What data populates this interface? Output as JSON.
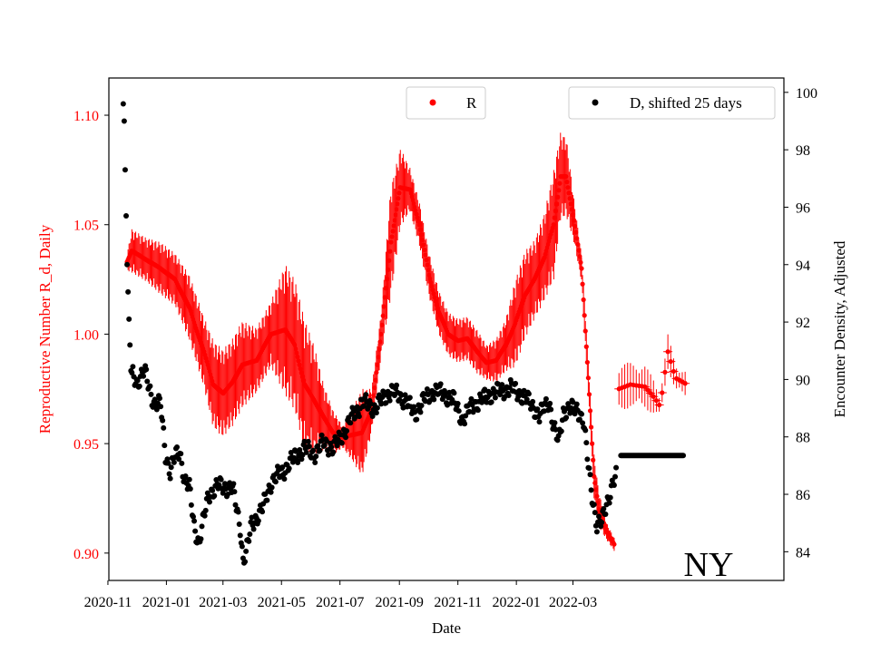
{
  "chart_data": {
    "type": "scatter",
    "xlabel": "Date",
    "ylabel_left": "Reproductive Number R_d, Daily",
    "ylabel_right": "Encounter Density, Adjusted",
    "annotation": "NY",
    "x_ticks": [
      "2020-11",
      "2021-01",
      "2021-03",
      "2021-05",
      "2021-07",
      "2021-09",
      "2021-11",
      "2022-01",
      "2022-03"
    ],
    "x_range_days": [
      -19,
      685
    ],
    "y_left": {
      "ticks": [
        "0.90",
        "0.95",
        "1.00",
        "1.05",
        "1.10"
      ],
      "range": [
        0.8875,
        1.117
      ],
      "color": "#ff0000"
    },
    "y_right": {
      "ticks": [
        "84",
        "86",
        "88",
        "90",
        "92",
        "94",
        "96",
        "98",
        "100"
      ],
      "range": [
        83.0,
        100.5
      ],
      "color": "#000000"
    },
    "legend": [
      {
        "label": "R",
        "color": "#ff0000",
        "position": "upper-center"
      },
      {
        "label": "D, shifted 25 days",
        "color": "#000000",
        "position": "upper-right"
      }
    ],
    "series": [
      {
        "name": "R",
        "axis": "left",
        "color": "#ff0000",
        "error_bars": true,
        "knots": [
          [
            0,
            1.033,
            0.004
          ],
          [
            5,
            1.038,
            0.01
          ],
          [
            20,
            1.034,
            0.01
          ],
          [
            35,
            1.03,
            0.012
          ],
          [
            50,
            1.025,
            0.012
          ],
          [
            65,
            1.012,
            0.015
          ],
          [
            80,
            0.992,
            0.016
          ],
          [
            90,
            0.977,
            0.02
          ],
          [
            100,
            0.973,
            0.02
          ],
          [
            110,
            0.978,
            0.02
          ],
          [
            120,
            0.986,
            0.02
          ],
          [
            135,
            0.988,
            0.015
          ],
          [
            150,
            1.0,
            0.015
          ],
          [
            165,
            1.002,
            0.03
          ],
          [
            175,
            0.995,
            0.03
          ],
          [
            185,
            0.977,
            0.03
          ],
          [
            195,
            0.97,
            0.025
          ],
          [
            205,
            0.962,
            0.015
          ],
          [
            215,
            0.955,
            0.01
          ],
          [
            225,
            0.953,
            0.005
          ],
          [
            235,
            0.954,
            0.012
          ],
          [
            245,
            0.955,
            0.02
          ],
          [
            255,
            0.965,
            0.01
          ],
          [
            265,
            1.0,
            0.01
          ],
          [
            275,
            1.042,
            0.025
          ],
          [
            285,
            1.067,
            0.018
          ],
          [
            295,
            1.066,
            0.01
          ],
          [
            305,
            1.05,
            0.01
          ],
          [
            315,
            1.027,
            0.01
          ],
          [
            325,
            1.01,
            0.01
          ],
          [
            335,
            1.0,
            0.01
          ],
          [
            345,
            0.997,
            0.01
          ],
          [
            355,
            0.998,
            0.01
          ],
          [
            365,
            0.992,
            0.01
          ],
          [
            375,
            0.987,
            0.008
          ],
          [
            385,
            0.988,
            0.01
          ],
          [
            395,
            0.995,
            0.012
          ],
          [
            405,
            1.005,
            0.02
          ],
          [
            415,
            1.018,
            0.02
          ],
          [
            425,
            1.025,
            0.018
          ],
          [
            435,
            1.035,
            0.02
          ],
          [
            445,
            1.05,
            0.025
          ],
          [
            452,
            1.072,
            0.02
          ],
          [
            458,
            1.072,
            0.018
          ],
          [
            466,
            1.052,
            0.01
          ],
          [
            474,
            1.03,
            0.006
          ],
          [
            481,
            0.98,
            0.008
          ],
          [
            487,
            0.935,
            0.01
          ],
          [
            492,
            0.92,
            0.008
          ],
          [
            500,
            0.91,
            0.004
          ],
          [
            508,
            0.904,
            0.003
          ]
        ],
        "segment_b_knots": [
          [
            513,
            0.975,
            0.012
          ],
          [
            525,
            0.977,
            0.01
          ],
          [
            540,
            0.976,
            0.01
          ],
          [
            550,
            0.971,
            0.008
          ],
          [
            556,
            0.967,
            0.005
          ],
          [
            564,
            0.992,
            0.008
          ],
          [
            572,
            0.98,
            0.006
          ],
          [
            584,
            0.977,
            0.006
          ]
        ]
      },
      {
        "name": "D, shifted 25 days",
        "axis": "right",
        "color": "#000000",
        "knots": [
          [
            -4,
            99.6
          ],
          [
            -3,
            99.0
          ],
          [
            -2,
            97.3
          ],
          [
            -1,
            95.7
          ],
          [
            0,
            94.0
          ],
          [
            2,
            92.1
          ],
          [
            4,
            90.3
          ],
          [
            10,
            89.9
          ],
          [
            18,
            90.3
          ],
          [
            24,
            89.6
          ],
          [
            28,
            89.2
          ],
          [
            35,
            89.1
          ],
          [
            40,
            87.4
          ],
          [
            45,
            86.8
          ],
          [
            50,
            87.3
          ],
          [
            55,
            87.5
          ],
          [
            60,
            86.5
          ],
          [
            65,
            86.2
          ],
          [
            70,
            84.9
          ],
          [
            75,
            84.3
          ],
          [
            85,
            86.0
          ],
          [
            95,
            86.3
          ],
          [
            110,
            86.2
          ],
          [
            118,
            84.9
          ],
          [
            121,
            83.7
          ],
          [
            124,
            83.9
          ],
          [
            130,
            85.0
          ],
          [
            140,
            85.4
          ],
          [
            150,
            86.4
          ],
          [
            165,
            86.9
          ],
          [
            175,
            87.3
          ],
          [
            185,
            87.6
          ],
          [
            195,
            87.4
          ],
          [
            205,
            87.8
          ],
          [
            215,
            87.6
          ],
          [
            225,
            88.1
          ],
          [
            235,
            88.7
          ],
          [
            245,
            89.2
          ],
          [
            258,
            89.0
          ],
          [
            275,
            89.6
          ],
          [
            290,
            89.3
          ],
          [
            300,
            88.8
          ],
          [
            310,
            89.3
          ],
          [
            320,
            89.6
          ],
          [
            330,
            89.5
          ],
          [
            340,
            89.3
          ],
          [
            350,
            88.6
          ],
          [
            360,
            89.1
          ],
          [
            370,
            89.3
          ],
          [
            380,
            89.5
          ],
          [
            390,
            89.6
          ],
          [
            400,
            89.7
          ],
          [
            410,
            89.5
          ],
          [
            420,
            89.2
          ],
          [
            425,
            89.0
          ],
          [
            430,
            88.7
          ],
          [
            440,
            89.3
          ],
          [
            445,
            88.3
          ],
          [
            450,
            87.8
          ],
          [
            455,
            88.9
          ],
          [
            470,
            89.0
          ],
          [
            476,
            88.5
          ],
          [
            481,
            87.0
          ],
          [
            485,
            86.0
          ],
          [
            490,
            84.9
          ],
          [
            495,
            85.0
          ],
          [
            500,
            85.7
          ],
          [
            505,
            86.2
          ],
          [
            510,
            86.6
          ]
        ],
        "segment_b": {
          "from_day": 515,
          "to_day": 580,
          "value": 87.35
        }
      }
    ]
  }
}
